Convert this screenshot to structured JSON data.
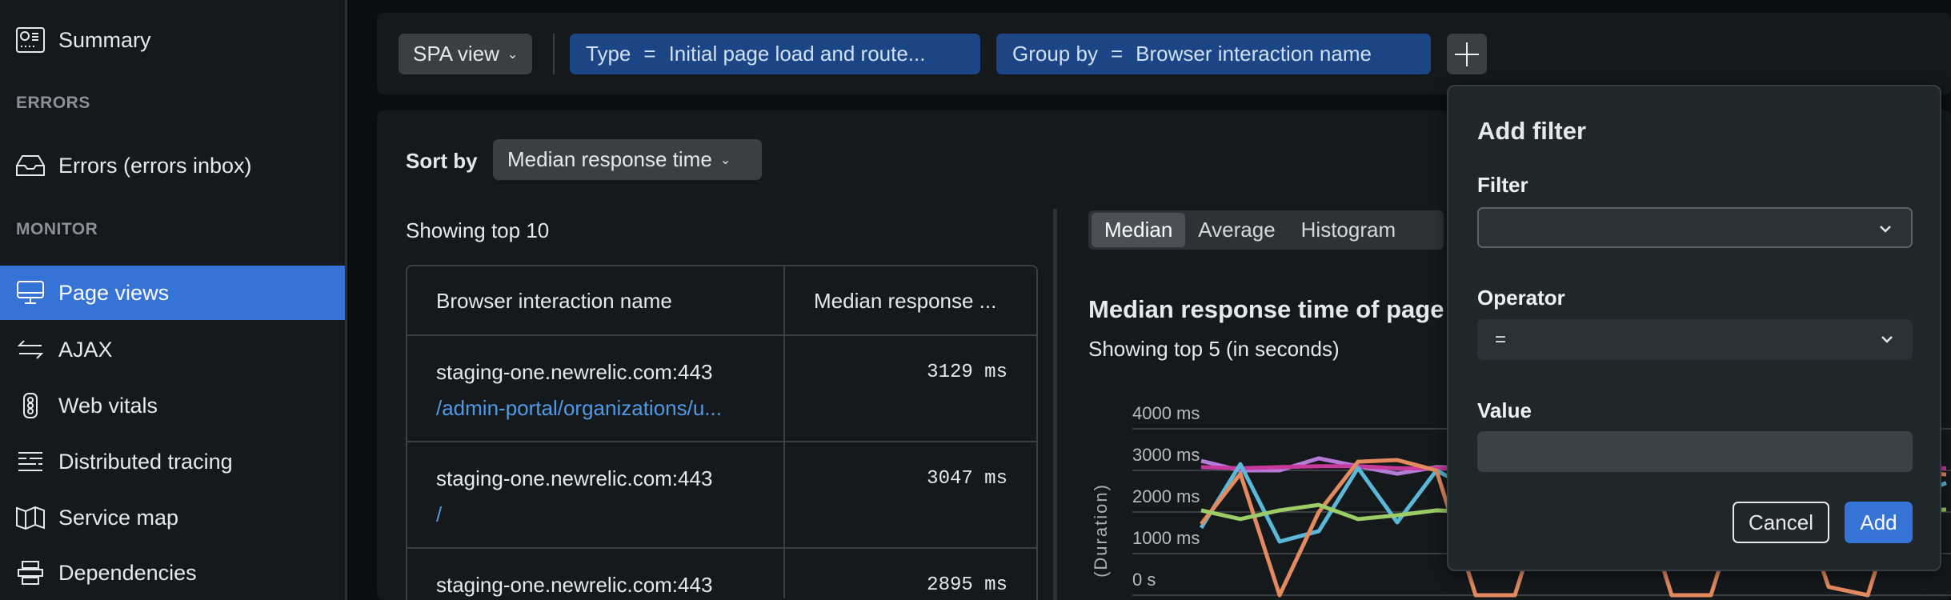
{
  "sidebar": {
    "items": [
      {
        "label": "Summary",
        "icon": "dashboard-icon"
      },
      {
        "section": "ERRORS"
      },
      {
        "label": "Errors (errors inbox)",
        "icon": "inbox-icon"
      },
      {
        "section": "MONITOR"
      },
      {
        "label": "Page views",
        "icon": "monitor-icon",
        "active": true
      },
      {
        "label": "AJAX",
        "icon": "arrows-exchange-icon"
      },
      {
        "label": "Web vitals",
        "icon": "traffic-light-icon"
      },
      {
        "label": "Distributed tracing",
        "icon": "tracing-icon"
      },
      {
        "label": "Service map",
        "icon": "map-icon"
      },
      {
        "label": "Dependencies",
        "icon": "dependencies-icon"
      }
    ],
    "active_color": "#3574d6"
  },
  "filterbar": {
    "spa_view": "SPA view",
    "type_filter": {
      "key": "Type",
      "op": "=",
      "value": "Initial page load and route..."
    },
    "group_filter": {
      "key": "Group by",
      "op": "=",
      "value": "Browser interaction name"
    },
    "add_icon": "plus-icon"
  },
  "sort": {
    "label": "Sort by",
    "value": "Median response time"
  },
  "table": {
    "showing": "Showing top 10",
    "headers": [
      "Browser interaction name",
      "Median response ..."
    ],
    "rows": [
      {
        "host": "staging-one.newrelic.com:443",
        "path": "/admin-portal/organizations/u...",
        "value": "3129 ms"
      },
      {
        "host": "staging-one.newrelic.com:443",
        "path": "/",
        "value": "3047 ms"
      },
      {
        "host": "staging-one.newrelic.com:443",
        "path": "",
        "value": "2895 ms"
      }
    ]
  },
  "chart_tabs": [
    "Median",
    "Average",
    "Histogram"
  ],
  "chart_data": {
    "type": "line",
    "title": "Median response time of page",
    "subtitle": "Showing top 5 (in seconds)",
    "ylabel": "(Duration)",
    "yticks": [
      "0 s",
      "1000 ms",
      "2000 ms",
      "3000 ms",
      "4000 ms"
    ],
    "ylim": [
      0,
      4000
    ],
    "grid": true,
    "series": [
      {
        "color": "#b57bd6",
        "values": [
          3230,
          3000,
          3000,
          3290,
          3100,
          2920,
          3080,
          3050,
          3100,
          3050,
          3000,
          3100,
          3050,
          3080,
          3000,
          3050,
          3100,
          3050,
          3050,
          3050
        ]
      },
      {
        "color": "#c8399e",
        "values": [
          3080,
          3050,
          3080,
          3100,
          3100,
          3050,
          3050,
          3050,
          3080,
          3050,
          3050,
          3080,
          3050,
          3050,
          3080,
          3050,
          3050,
          3050,
          3050,
          3050
        ]
      },
      {
        "color": "#5ab8d8",
        "values": [
          1620,
          3150,
          1290,
          1540,
          3060,
          1750,
          3000,
          2500,
          2200,
          2800,
          2300,
          2600,
          2400,
          2900,
          2200,
          2700,
          2500,
          2600,
          2300,
          2700
        ]
      },
      {
        "color": "#e38a5e",
        "values": [
          1710,
          2920,
          0,
          2000,
          3210,
          3250,
          3000,
          0,
          0,
          3000,
          3000,
          3000,
          0,
          0,
          3000,
          3000,
          200,
          0,
          3000,
          2900
        ]
      },
      {
        "color": "#9ccc65",
        "values": [
          2040,
          1830,
          2040,
          2170,
          1830,
          1920,
          2040,
          2000,
          2050,
          2000,
          1950,
          2050,
          2000,
          2000,
          2050,
          2000,
          2000,
          2050,
          2000,
          2060
        ]
      }
    ]
  },
  "popover": {
    "title": "Add filter",
    "filter_label": "Filter",
    "filter_value": "",
    "operator_label": "Operator",
    "operator_value": "=",
    "value_label": "Value",
    "value_value": "",
    "cancel": "Cancel",
    "add": "Add"
  }
}
